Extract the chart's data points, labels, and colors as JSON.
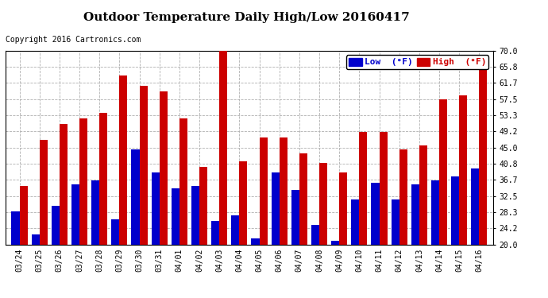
{
  "title": "Outdoor Temperature Daily High/Low 20160417",
  "copyright": "Copyright 2016 Cartronics.com",
  "legend_low": "Low  (°F)",
  "legend_high": "High  (°F)",
  "dates": [
    "03/24",
    "03/25",
    "03/26",
    "03/27",
    "03/28",
    "03/29",
    "03/30",
    "03/31",
    "04/01",
    "04/02",
    "04/03",
    "04/04",
    "04/05",
    "04/06",
    "04/07",
    "04/08",
    "04/09",
    "04/10",
    "04/11",
    "04/12",
    "04/13",
    "04/14",
    "04/15",
    "04/16"
  ],
  "highs": [
    35.0,
    47.0,
    51.0,
    52.5,
    54.0,
    63.5,
    61.0,
    59.5,
    52.5,
    40.0,
    70.5,
    41.5,
    47.5,
    47.5,
    43.5,
    41.0,
    38.5,
    49.0,
    49.0,
    44.5,
    45.5,
    57.5,
    58.5,
    67.0
  ],
  "lows": [
    28.5,
    22.5,
    30.0,
    35.5,
    36.5,
    26.5,
    44.5,
    38.5,
    34.5,
    35.0,
    26.0,
    27.5,
    21.5,
    38.5,
    34.0,
    25.0,
    21.0,
    31.5,
    36.0,
    31.5,
    35.5,
    36.5,
    37.5,
    39.5
  ],
  "ylim": [
    20.0,
    70.0
  ],
  "yticks": [
    20.0,
    24.2,
    28.3,
    32.5,
    36.7,
    40.8,
    45.0,
    49.2,
    53.3,
    57.5,
    61.7,
    65.8,
    70.0
  ],
  "bar_color_low": "#0000cc",
  "bar_color_high": "#cc0000",
  "background_color": "#ffffff",
  "title_fontsize": 11,
  "copyright_fontsize": 7,
  "tick_fontsize": 7,
  "legend_fontsize": 8
}
